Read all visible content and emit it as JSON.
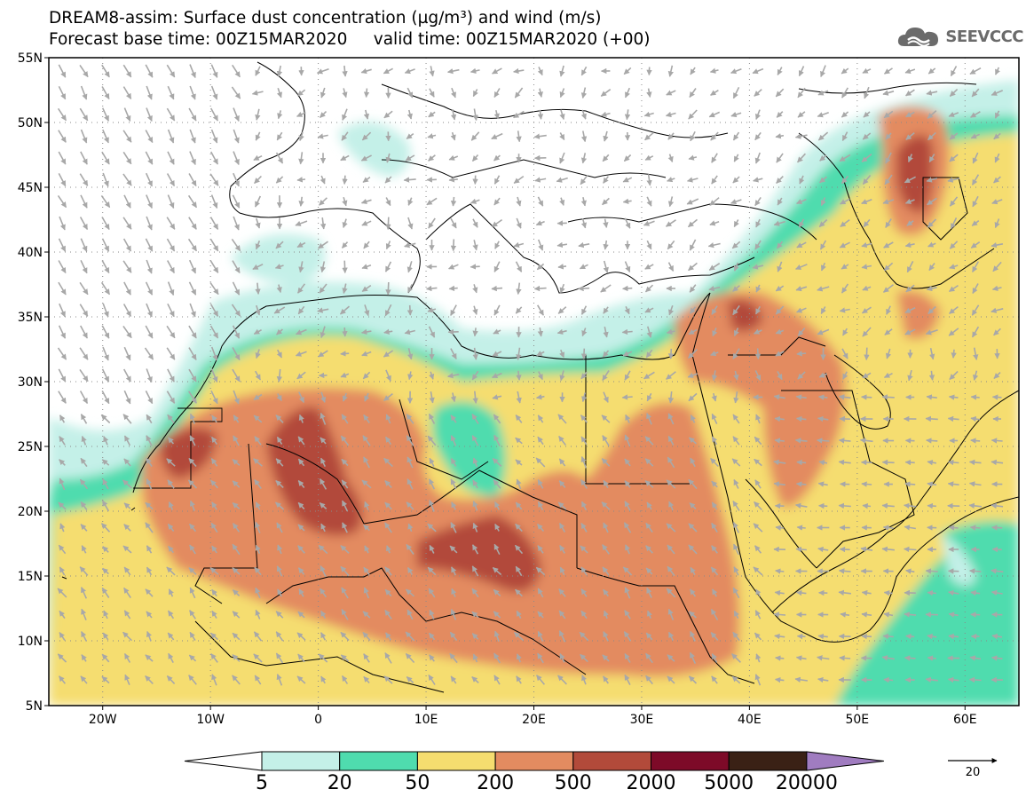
{
  "header": {
    "title_line1": "DREAM8-assim: Surface dust concentration (µg/m³) and wind (m/s)",
    "title_line2": "Forecast base time: 00Z15MAR2020     valid time: 00Z15MAR2020 (+00)",
    "brand": "SEEVCCC",
    "brand_icon": "cloud-logo-icon"
  },
  "map": {
    "lat_labels": [
      "55N",
      "50N",
      "45N",
      "40N",
      "35N",
      "30N",
      "25N",
      "20N",
      "15N",
      "10N",
      "5N"
    ],
    "lon_labels": [
      "20W",
      "10W",
      "0",
      "10E",
      "20E",
      "30E",
      "40E",
      "50E",
      "60E"
    ],
    "grid": "dotted",
    "field": "dust concentration",
    "vector_field": "wind"
  },
  "colorbar": {
    "levels": [
      "5",
      "20",
      "50",
      "200",
      "500",
      "2000",
      "5000",
      "20000"
    ],
    "colors": [
      "#ffffff",
      "#c4f0e8",
      "#4fdcae",
      "#f5dd6f",
      "#e38b60",
      "#b24a3a",
      "#7d0a28",
      "#3a2115",
      "#a07cc0"
    ]
  },
  "wind_reference": {
    "value": "20",
    "arrow_icon": "right-arrow-icon"
  }
}
